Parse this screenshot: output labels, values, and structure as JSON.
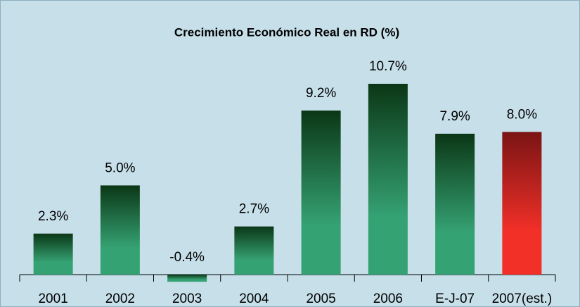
{
  "chart_data": {
    "type": "bar",
    "title": "Crecimiento Económico Real en RD (%)",
    "categories": [
      "2001",
      "2002",
      "2003",
      "2004",
      "2005",
      "2006",
      "E-J-07",
      "2007(est.)"
    ],
    "values": [
      2.3,
      5.0,
      -0.4,
      2.7,
      9.2,
      10.7,
      7.9,
      8.0
    ],
    "value_labels": [
      "2.3%",
      "5.0%",
      "-0.4%",
      "2.7%",
      "9.2%",
      "10.7%",
      "7.9%",
      "8.0%"
    ],
    "colors": [
      [
        "#0b3716",
        "#35a273"
      ],
      [
        "#0b3716",
        "#35a273"
      ],
      [
        "#0b3716",
        "#35a273"
      ],
      [
        "#0b3716",
        "#35a273"
      ],
      [
        "#0b3716",
        "#35a273"
      ],
      [
        "#0b3716",
        "#35a273"
      ],
      [
        "#0b3716",
        "#35a273"
      ],
      [
        "#7a1414",
        "#f23028"
      ]
    ]
  }
}
